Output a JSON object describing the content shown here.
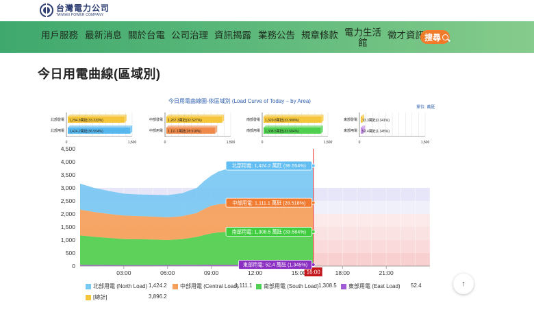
{
  "logo": {
    "zh": "台灣電力公司",
    "en": "TAIWAN POWER COMPANY"
  },
  "nav": [
    {
      "label": "用戶服務"
    },
    {
      "label": "最新消息"
    },
    {
      "label": "關於台電"
    },
    {
      "label": "公司治理"
    },
    {
      "label": "資訊揭露"
    },
    {
      "label": "業務公告"
    },
    {
      "label": "規章條款"
    },
    {
      "label": "電力生活館"
    },
    {
      "label": "徵才資訊"
    }
  ],
  "search": {
    "label": "搜尋"
  },
  "page_title": "今日用電曲線(區域別)",
  "chart_title": "今日用電曲線圖-依區域別 (Load Curve of Today – by Area)",
  "chart_unit": "單位: 萬瓩",
  "mini_charts": [
    {
      "gen_label": "北部發電",
      "load_label": "北部用電",
      "gen_value": 1294.8,
      "gen_text": "1,294.8萬瓩(33.232%)",
      "load_value": 1424.2,
      "load_text": "1,424.2萬瓩(36.554%)",
      "ticks": [
        "0",
        "1,500"
      ],
      "max": 1500,
      "gen_color": "#f5c53a",
      "load_color": "#57b8f0"
    },
    {
      "gen_label": "中部發電",
      "load_label": "中部用電",
      "gen_value": 1267.3,
      "gen_text": "1,267.3萬瓩(32.527%)",
      "load_value": 1111.1,
      "load_text": "1,111.1萬瓩(28.518%)",
      "ticks": [
        "0",
        "1,500"
      ],
      "max": 1500,
      "gen_color": "#f5c53a",
      "load_color": "#f08a4b"
    },
    {
      "gen_label": "南部發電",
      "load_label": "南部用電",
      "gen_value": 1320.8,
      "gen_text": "1,320.8萬瓩(33.900%)",
      "load_value": 1308.5,
      "load_text": "1,308.5萬瓩(33.584%)",
      "ticks": [
        "0",
        "1,500"
      ],
      "max": 1500,
      "gen_color": "#f5c53a",
      "load_color": "#4fd04f"
    },
    {
      "gen_label": "東部發電",
      "load_label": "東部用電",
      "gen_value": 13.3,
      "gen_text": "13.3萬瓩(0.341%)",
      "load_value": 52.4,
      "load_text": "52.4萬瓩(1.345%)",
      "ticks": [
        "0",
        "1,500"
      ],
      "max": 1500,
      "gen_color": "#f5c53a",
      "load_color": "#c48ee6"
    }
  ],
  "chart_data": {
    "type": "area",
    "stacked": true,
    "x_ticks": [
      "03:00",
      "06:00",
      "09:00",
      "12:00",
      "15:00",
      "18:00",
      "21:00"
    ],
    "y_ticks": [
      "0",
      "500",
      "1,000",
      "1,500",
      "2,000",
      "2,500",
      "3,000",
      "3,500",
      "4,000",
      "4,500"
    ],
    "ylim": [
      0,
      4500
    ],
    "xlim_hours": [
      0,
      24
    ],
    "current_time_label": "16:00",
    "current_time_hours": 16,
    "x_hours": [
      0,
      1,
      2,
      3,
      4,
      5,
      6,
      7,
      8,
      8.5,
      9,
      9.5,
      10,
      11,
      12,
      13,
      14,
      15,
      16
    ],
    "series": [
      {
        "name": "東部用電 (East Load)",
        "color": "#a05cd6",
        "values": [
          45,
          42,
          40,
          38,
          38,
          38,
          40,
          44,
          48,
          50,
          52,
          52,
          53,
          53,
          52,
          52,
          52,
          52,
          52.4
        ]
      },
      {
        "name": "南部用電 (South Load)",
        "color": "#4fd04f",
        "values": [
          1130,
          1080,
          1040,
          1000,
          990,
          980,
          960,
          990,
          1070,
          1140,
          1200,
          1240,
          1260,
          1280,
          1290,
          1300,
          1305,
          1305,
          1308.5
        ]
      },
      {
        "name": "中部用電 (Central Load)",
        "color": "#f5a05a",
        "values": [
          990,
          950,
          920,
          900,
          890,
          880,
          870,
          880,
          920,
          1000,
          1060,
          1080,
          1090,
          1100,
          1105,
          1110,
          1110,
          1110,
          1111.1
        ]
      },
      {
        "name": "北部用電 (North Load)",
        "color": "#79c8f2",
        "values": [
          1000,
          920,
          880,
          840,
          830,
          840,
          850,
          880,
          960,
          1070,
          1160,
          1260,
          1310,
          1360,
          1390,
          1405,
          1415,
          1420,
          1424.2
        ]
      }
    ],
    "bands": [
      {
        "from": 0,
        "to": 500,
        "color": "#f9d0d0"
      },
      {
        "from": 500,
        "to": 1000,
        "color": "#fadada"
      },
      {
        "from": 1000,
        "to": 1500,
        "color": "#fbe2e2"
      },
      {
        "from": 1500,
        "to": 2000,
        "color": "#fce9e9"
      },
      {
        "from": 2000,
        "to": 2500,
        "color": "#f0f0fb"
      },
      {
        "from": 2500,
        "to": 3000,
        "color": "#e6e6f8"
      }
    ],
    "callouts": [
      {
        "text": "北部用電: 1,424.2 萬瓩 (36.554%)",
        "color": "#62bdf2",
        "y": 3854.2
      },
      {
        "text": "中部用電: 1,111.1 萬瓩 (28.518%)",
        "color": "#f07a2e",
        "y": 2430
      },
      {
        "text": "南部用電: 1,308.5 萬瓩 (33.584%)",
        "color": "#3fcc3f",
        "y": 1320
      },
      {
        "text": "東部用電: 52.4 萬瓩 (1.345%)",
        "color": "#8a2fc2",
        "y": 52.4
      }
    ],
    "legend": [
      {
        "label": "北部用電 (North Load)",
        "value": "1,424.2",
        "color": "#79c8f2"
      },
      {
        "label": "中部用電 (Central Load)",
        "value": "1,111.1",
        "color": "#f5a05a"
      },
      {
        "label": "南部用電 (South Load)",
        "value": "1,308.5",
        "color": "#4fd04f"
      },
      {
        "label": "東部用電 (East Load)",
        "value": "52.4",
        "color": "#a05cd6"
      },
      {
        "label": "[總計]",
        "value": "3,896.2",
        "color": "#f5c53a"
      }
    ]
  }
}
